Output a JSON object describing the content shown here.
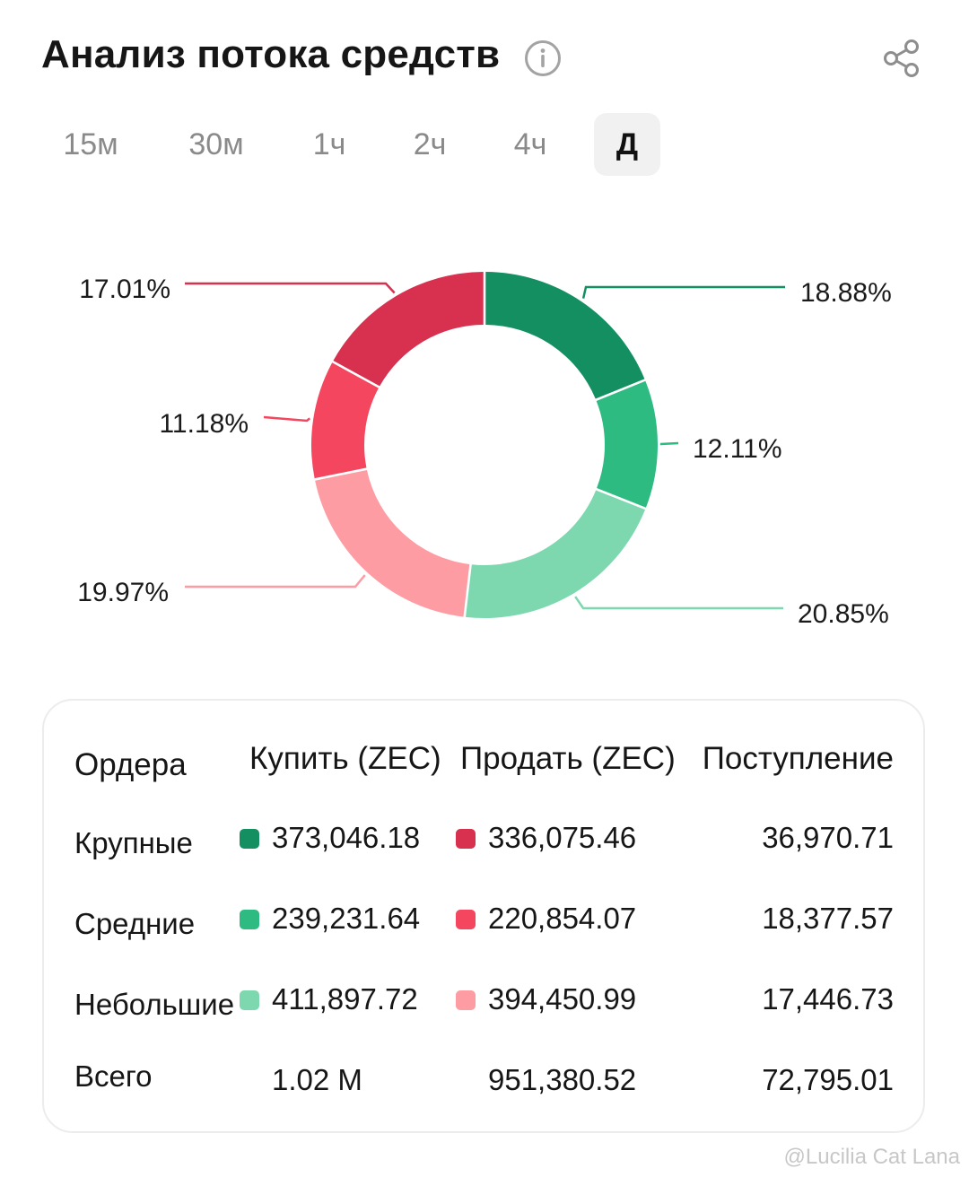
{
  "header": {
    "title": "Анализ потока средств",
    "info_icon": "info-circle-icon",
    "share_icon": "share-icon"
  },
  "tabs": [
    {
      "label": "15м",
      "active": false
    },
    {
      "label": "30м",
      "active": false
    },
    {
      "label": "1ч",
      "active": false
    },
    {
      "label": "2ч",
      "active": false
    },
    {
      "label": "4ч",
      "active": false
    },
    {
      "label": "Д",
      "active": true
    }
  ],
  "chart_data": {
    "type": "pie",
    "donut": true,
    "labels": [
      "18.88%",
      "12.11%",
      "20.85%",
      "19.97%",
      "11.18%",
      "17.01%"
    ],
    "values": [
      18.88,
      12.11,
      20.85,
      19.97,
      11.18,
      17.01
    ],
    "colors": [
      "#138f62",
      "#2dbb82",
      "#7dd8b0",
      "#fe9ca3",
      "#f4465f",
      "#d8304f"
    ]
  },
  "table": {
    "headers": [
      "Ордера",
      "Купить (ZEC)",
      "Продать (ZEC)",
      "Поступление"
    ],
    "rows": [
      {
        "label": "Крупные",
        "buy": "373,046.18",
        "sell": "336,075.46",
        "inflow": "36,970.71",
        "buy_color": "#138f62",
        "sell_color": "#d8304f"
      },
      {
        "label": "Средние",
        "buy": "239,231.64",
        "sell": "220,854.07",
        "inflow": "18,377.57",
        "buy_color": "#2dbb82",
        "sell_color": "#f4465f"
      },
      {
        "label": "Небольшие",
        "buy": "411,897.72",
        "sell": "394,450.99",
        "inflow": "17,446.73",
        "buy_color": "#7dd8b0",
        "sell_color": "#fe9ca3"
      }
    ],
    "total": {
      "label": "Всего",
      "buy": "1.02 M",
      "sell": "951,380.52",
      "inflow": "72,795.01"
    }
  },
  "watermark": "@Lucilia Cat Lana"
}
